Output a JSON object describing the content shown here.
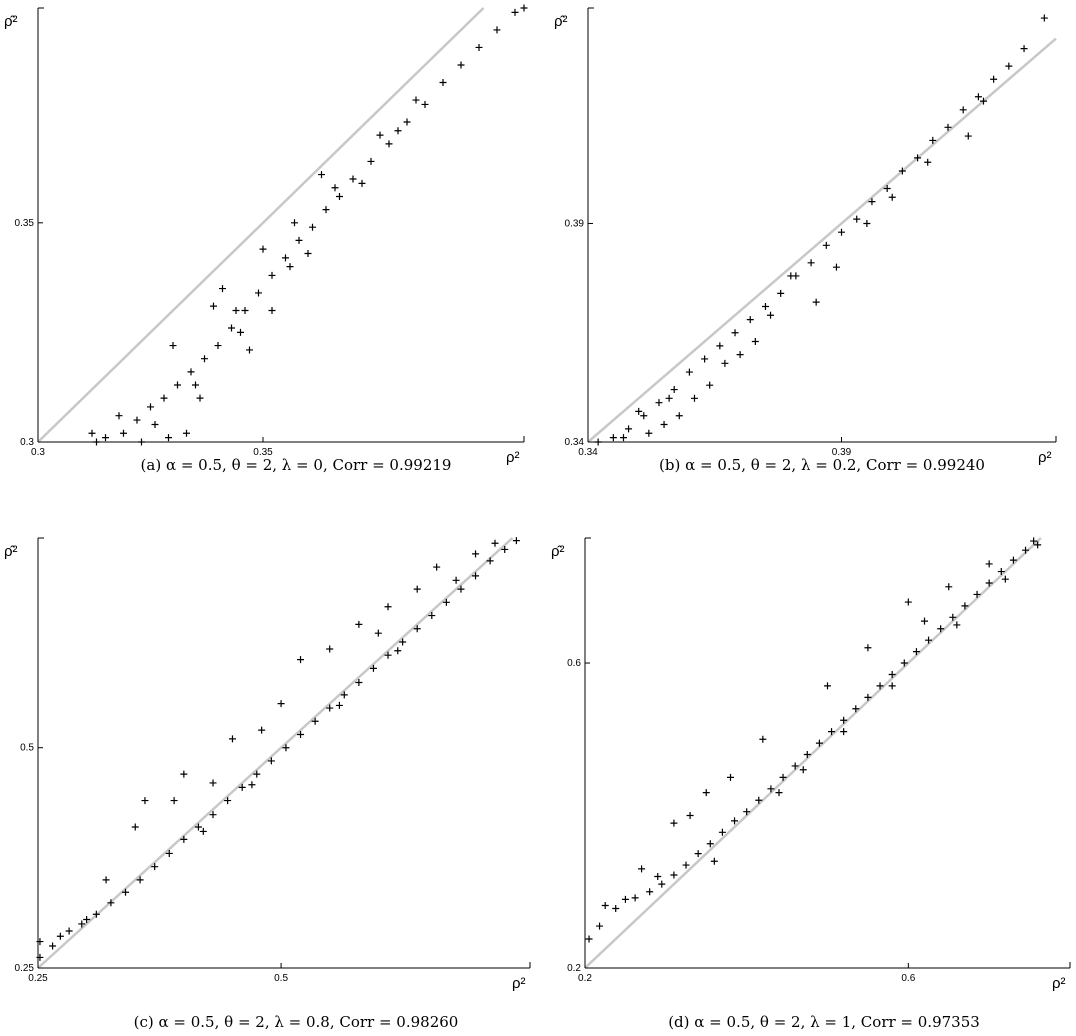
{
  "chart_data": [
    {
      "type": "scatter",
      "panel": "a",
      "caption": "(a) α = 0.5, θ = 2, λ = 0, Corr = 0.99219",
      "xlabel": "ρ²",
      "ylabel": "ρ̂²",
      "xlim": [
        0.3,
        0.408
      ],
      "ylim": [
        0.3,
        0.399
      ],
      "xticks": [
        "0.3",
        "0.35"
      ],
      "yticks": [
        "0.3",
        "0.35"
      ],
      "reference_line": "y = x",
      "marker": "+",
      "series": [
        {
          "values": [
            [
              0.313,
              0.3
            ],
            [
              0.315,
              0.301
            ],
            [
              0.319,
              0.302
            ],
            [
              0.322,
              0.305
            ],
            [
              0.325,
              0.308
            ],
            [
              0.328,
              0.31
            ],
            [
              0.331,
              0.313
            ],
            [
              0.334,
              0.316
            ],
            [
              0.337,
              0.319
            ],
            [
              0.34,
              0.322
            ],
            [
              0.343,
              0.326
            ],
            [
              0.346,
              0.33
            ],
            [
              0.349,
              0.334
            ],
            [
              0.352,
              0.338
            ],
            [
              0.355,
              0.342
            ],
            [
              0.358,
              0.346
            ],
            [
              0.361,
              0.349
            ],
            [
              0.364,
              0.353
            ],
            [
              0.367,
              0.356
            ],
            [
              0.37,
              0.36
            ],
            [
              0.374,
              0.364
            ],
            [
              0.378,
              0.368
            ],
            [
              0.382,
              0.373
            ],
            [
              0.386,
              0.377
            ],
            [
              0.39,
              0.382
            ],
            [
              0.394,
              0.386
            ],
            [
              0.398,
              0.39
            ],
            [
              0.402,
              0.394
            ],
            [
              0.406,
              0.398
            ],
            [
              0.408,
              0.399
            ],
            [
              0.318,
              0.306
            ],
            [
              0.326,
              0.304
            ],
            [
              0.333,
              0.302
            ],
            [
              0.33,
              0.322
            ],
            [
              0.341,
              0.335
            ],
            [
              0.336,
              0.31
            ],
            [
              0.347,
              0.321
            ],
            [
              0.352,
              0.33
            ],
            [
              0.356,
              0.34
            ],
            [
              0.36,
              0.343
            ],
            [
              0.363,
              0.361
            ],
            [
              0.372,
              0.359
            ],
            [
              0.376,
              0.37
            ],
            [
              0.38,
              0.371
            ],
            [
              0.344,
              0.33
            ],
            [
              0.339,
              0.331
            ],
            [
              0.35,
              0.344
            ],
            [
              0.357,
              0.35
            ],
            [
              0.366,
              0.358
            ],
            [
              0.384,
              0.378
            ],
            [
              0.312,
              0.302
            ],
            [
              0.323,
              0.3
            ],
            [
              0.329,
              0.301
            ],
            [
              0.335,
              0.313
            ],
            [
              0.345,
              0.325
            ]
          ]
        }
      ]
    },
    {
      "type": "scatter",
      "panel": "b",
      "caption": "(b) α = 0.5, θ = 2, λ = 0.2, Corr = 0.99240",
      "xlabel": "ρ²",
      "ylabel": "ρ̂²",
      "xlim": [
        0.34,
        0.4323
      ],
      "ylim": [
        0.34,
        0.4393
      ],
      "xticks": [
        "0.34",
        "0.39"
      ],
      "yticks": [
        "0.34",
        "0.39"
      ],
      "reference_line": "y = x",
      "marker": "+",
      "series": [
        {
          "values": [
            [
              0.342,
              0.34
            ],
            [
              0.345,
              0.341
            ],
            [
              0.348,
              0.343
            ],
            [
              0.351,
              0.346
            ],
            [
              0.354,
              0.349
            ],
            [
              0.357,
              0.352
            ],
            [
              0.36,
              0.356
            ],
            [
              0.363,
              0.359
            ],
            [
              0.366,
              0.362
            ],
            [
              0.369,
              0.365
            ],
            [
              0.372,
              0.368
            ],
            [
              0.375,
              0.371
            ],
            [
              0.378,
              0.374
            ],
            [
              0.381,
              0.378
            ],
            [
              0.384,
              0.381
            ],
            [
              0.387,
              0.385
            ],
            [
              0.39,
              0.388
            ],
            [
              0.393,
              0.391
            ],
            [
              0.396,
              0.395
            ],
            [
              0.399,
              0.398
            ],
            [
              0.402,
              0.402
            ],
            [
              0.405,
              0.405
            ],
            [
              0.408,
              0.409
            ],
            [
              0.411,
              0.412
            ],
            [
              0.414,
              0.416
            ],
            [
              0.417,
              0.419
            ],
            [
              0.42,
              0.423
            ],
            [
              0.423,
              0.426
            ],
            [
              0.426,
              0.43
            ],
            [
              0.43,
              0.437
            ],
            [
              0.347,
              0.341
            ],
            [
              0.352,
              0.342
            ],
            [
              0.355,
              0.344
            ],
            [
              0.358,
              0.346
            ],
            [
              0.361,
              0.35
            ],
            [
              0.364,
              0.353
            ],
            [
              0.367,
              0.358
            ],
            [
              0.37,
              0.36
            ],
            [
              0.373,
              0.363
            ],
            [
              0.385,
              0.372
            ],
            [
              0.38,
              0.378
            ],
            [
              0.389,
              0.38
            ],
            [
              0.395,
              0.39
            ],
            [
              0.4,
              0.396
            ],
            [
              0.407,
              0.404
            ],
            [
              0.415,
              0.41
            ],
            [
              0.35,
              0.347
            ],
            [
              0.356,
              0.35
            ],
            [
              0.376,
              0.369
            ],
            [
              0.418,
              0.418
            ]
          ]
        }
      ]
    },
    {
      "type": "scatter",
      "panel": "c",
      "caption": "(c) α = 0.5, θ = 2, λ = 0.8, Corr = 0.98260",
      "xlabel": "ρ²",
      "ylabel": "ρ̂²",
      "xlim": [
        0.25,
        0.756
      ],
      "ylim": [
        0.25,
        0.738
      ],
      "xticks": [
        "0.25",
        "0.5"
      ],
      "yticks": [
        "0.25",
        "0.5"
      ],
      "reference_line": "y = x",
      "marker": "+",
      "series": [
        {
          "values": [
            [
              0.252,
              0.262
            ],
            [
              0.252,
              0.28
            ],
            [
              0.265,
              0.275
            ],
            [
              0.273,
              0.286
            ],
            [
              0.282,
              0.292
            ],
            [
              0.295,
              0.3
            ],
            [
              0.31,
              0.311
            ],
            [
              0.325,
              0.324
            ],
            [
              0.34,
              0.336
            ],
            [
              0.355,
              0.35
            ],
            [
              0.37,
              0.365
            ],
            [
              0.385,
              0.38
            ],
            [
              0.4,
              0.396
            ],
            [
              0.415,
              0.41
            ],
            [
              0.43,
              0.424
            ],
            [
              0.445,
              0.44
            ],
            [
              0.46,
              0.455
            ],
            [
              0.475,
              0.47
            ],
            [
              0.49,
              0.485
            ],
            [
              0.505,
              0.5
            ],
            [
              0.52,
              0.515
            ],
            [
              0.535,
              0.53
            ],
            [
              0.55,
              0.545
            ],
            [
              0.565,
              0.56
            ],
            [
              0.58,
              0.574
            ],
            [
              0.595,
              0.59
            ],
            [
              0.61,
              0.605
            ],
            [
              0.625,
              0.62
            ],
            [
              0.64,
              0.635
            ],
            [
              0.655,
              0.65
            ],
            [
              0.67,
              0.665
            ],
            [
              0.685,
              0.68
            ],
            [
              0.7,
              0.695
            ],
            [
              0.715,
              0.712
            ],
            [
              0.73,
              0.725
            ],
            [
              0.742,
              0.735
            ],
            [
              0.72,
              0.732
            ],
            [
              0.7,
              0.72
            ],
            [
              0.66,
              0.705
            ],
            [
              0.64,
              0.68
            ],
            [
              0.61,
              0.66
            ],
            [
              0.58,
              0.64
            ],
            [
              0.55,
              0.612
            ],
            [
              0.52,
              0.6
            ],
            [
              0.45,
              0.51
            ],
            [
              0.4,
              0.47
            ],
            [
              0.36,
              0.44
            ],
            [
              0.32,
              0.35
            ],
            [
              0.35,
              0.41
            ],
            [
              0.39,
              0.44
            ],
            [
              0.43,
              0.46
            ],
            [
              0.48,
              0.52
            ],
            [
              0.5,
              0.55
            ],
            [
              0.6,
              0.63
            ],
            [
              0.68,
              0.69
            ],
            [
              0.42,
              0.405
            ],
            [
              0.47,
              0.458
            ],
            [
              0.56,
              0.548
            ],
            [
              0.62,
              0.61
            ],
            [
              0.3,
              0.305
            ]
          ]
        }
      ]
    },
    {
      "type": "scatter",
      "panel": "d",
      "caption": "(d) α = 0.5, θ = 2, λ = 1, Corr = 0.97353",
      "xlabel": "ρ²",
      "ylabel": "ρ̂²",
      "xlim": [
        0.2,
        0.8
      ],
      "ylim": [
        0.2,
        0.764
      ],
      "xticks": [
        "0.2",
        "0.6"
      ],
      "yticks": [
        "0.2",
        "0.6"
      ],
      "reference_line": "y = x",
      "marker": "+",
      "series": [
        {
          "values": [
            [
              0.205,
              0.238
            ],
            [
              0.218,
              0.255
            ],
            [
              0.225,
              0.282
            ],
            [
              0.238,
              0.278
            ],
            [
              0.25,
              0.29
            ],
            [
              0.262,
              0.292
            ],
            [
              0.28,
              0.3
            ],
            [
              0.295,
              0.31
            ],
            [
              0.31,
              0.322
            ],
            [
              0.325,
              0.335
            ],
            [
              0.34,
              0.35
            ],
            [
              0.355,
              0.363
            ],
            [
              0.37,
              0.378
            ],
            [
              0.385,
              0.393
            ],
            [
              0.4,
              0.405
            ],
            [
              0.415,
              0.42
            ],
            [
              0.43,
              0.435
            ],
            [
              0.445,
              0.45
            ],
            [
              0.46,
              0.465
            ],
            [
              0.475,
              0.48
            ],
            [
              0.49,
              0.495
            ],
            [
              0.505,
              0.51
            ],
            [
              0.52,
              0.525
            ],
            [
              0.535,
              0.54
            ],
            [
              0.55,
              0.555
            ],
            [
              0.565,
              0.57
            ],
            [
              0.58,
              0.585
            ],
            [
              0.595,
              0.6
            ],
            [
              0.61,
              0.615
            ],
            [
              0.625,
              0.63
            ],
            [
              0.64,
              0.645
            ],
            [
              0.655,
              0.66
            ],
            [
              0.67,
              0.675
            ],
            [
              0.685,
              0.69
            ],
            [
              0.7,
              0.705
            ],
            [
              0.715,
              0.72
            ],
            [
              0.73,
              0.735
            ],
            [
              0.745,
              0.748
            ],
            [
              0.76,
              0.755
            ],
            [
              0.755,
              0.76
            ],
            [
              0.35,
              0.43
            ],
            [
              0.38,
              0.45
            ],
            [
              0.31,
              0.39
            ],
            [
              0.42,
              0.5
            ],
            [
              0.5,
              0.57
            ],
            [
              0.55,
              0.62
            ],
            [
              0.6,
              0.68
            ],
            [
              0.65,
              0.7
            ],
            [
              0.7,
              0.73
            ],
            [
              0.62,
              0.655
            ],
            [
              0.44,
              0.43
            ],
            [
              0.52,
              0.51
            ],
            [
              0.58,
              0.57
            ],
            [
              0.66,
              0.65
            ],
            [
              0.72,
              0.71
            ],
            [
              0.36,
              0.34
            ],
            [
              0.47,
              0.46
            ],
            [
              0.29,
              0.32
            ],
            [
              0.33,
              0.4
            ],
            [
              0.27,
              0.33
            ]
          ]
        }
      ]
    }
  ]
}
